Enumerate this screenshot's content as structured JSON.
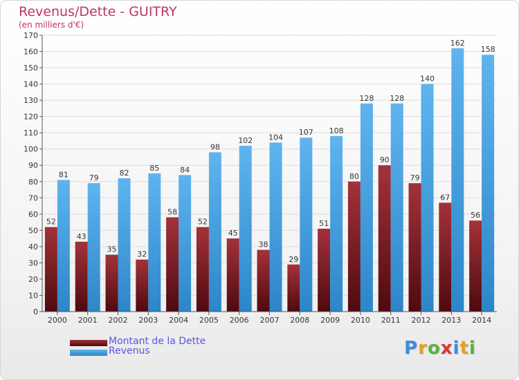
{
  "title": "Revenus/Dette - GUITRY",
  "subtitle": "(en milliers d'€)",
  "logo": {
    "text": "Proxiti",
    "letter_colors": [
      "#3b8fd6",
      "#e8a020",
      "#5cb040",
      "#d9392f",
      "#3b8fd6",
      "#e8a020",
      "#5cb040"
    ]
  },
  "chart_data": {
    "type": "bar",
    "title": "Revenus/Dette - GUITRY",
    "subtitle": "(en milliers d'€)",
    "categories": [
      "2000",
      "2001",
      "2002",
      "2003",
      "2004",
      "2005",
      "2006",
      "2007",
      "2008",
      "2009",
      "2010",
      "2011",
      "2012",
      "2013",
      "2014"
    ],
    "series": [
      {
        "name": "Montant de la Dette",
        "color": "#7a1a1f",
        "values": [
          52,
          43,
          35,
          32,
          58,
          52,
          45,
          38,
          29,
          51,
          80,
          90,
          79,
          67,
          56
        ]
      },
      {
        "name": "Revenus",
        "color": "#4da6e6",
        "values": [
          81,
          79,
          82,
          85,
          84,
          98,
          102,
          104,
          107,
          108,
          128,
          128,
          140,
          162,
          158
        ]
      }
    ],
    "ylim": [
      0,
      170
    ],
    "yticks": [
      0,
      10,
      20,
      30,
      40,
      50,
      60,
      70,
      80,
      90,
      100,
      110,
      120,
      130,
      140,
      150,
      160,
      170
    ],
    "grid": true,
    "legend": "bottom-left"
  }
}
